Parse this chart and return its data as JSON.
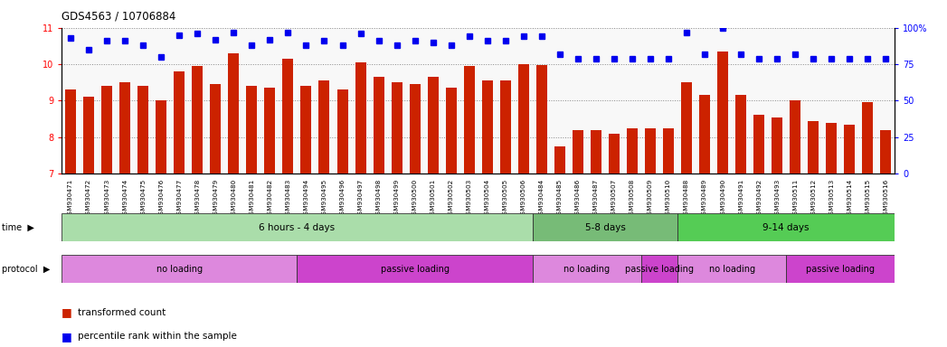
{
  "title": "GDS4563 / 10706884",
  "samples": [
    "GSM930471",
    "GSM930472",
    "GSM930473",
    "GSM930474",
    "GSM930475",
    "GSM930476",
    "GSM930477",
    "GSM930478",
    "GSM930479",
    "GSM930480",
    "GSM930481",
    "GSM930482",
    "GSM930483",
    "GSM930494",
    "GSM930495",
    "GSM930496",
    "GSM930497",
    "GSM930498",
    "GSM930499",
    "GSM930500",
    "GSM930501",
    "GSM930502",
    "GSM930503",
    "GSM930504",
    "GSM930505",
    "GSM930506",
    "GSM930484",
    "GSM930485",
    "GSM930486",
    "GSM930487",
    "GSM930507",
    "GSM930508",
    "GSM930509",
    "GSM930510",
    "GSM930488",
    "GSM930489",
    "GSM930490",
    "GSM930491",
    "GSM930492",
    "GSM930493",
    "GSM930511",
    "GSM930512",
    "GSM930513",
    "GSM930514",
    "GSM930515",
    "GSM930516"
  ],
  "bar_values": [
    9.3,
    9.1,
    9.4,
    9.5,
    9.4,
    9.0,
    9.8,
    9.95,
    9.45,
    10.3,
    9.4,
    9.35,
    10.15,
    9.4,
    9.55,
    9.3,
    10.05,
    9.65,
    9.5,
    9.45,
    9.65,
    9.35,
    9.95,
    9.55,
    9.55,
    10.0,
    9.97,
    7.75,
    8.2,
    8.2,
    8.1,
    8.25,
    8.25,
    8.25,
    9.5,
    9.15,
    10.35,
    9.15,
    8.6,
    8.55,
    9.0,
    8.45,
    8.4,
    8.35,
    8.95,
    8.2
  ],
  "dot_values": [
    93,
    85,
    91,
    91,
    88,
    80,
    95,
    96,
    92,
    97,
    88,
    92,
    97,
    88,
    91,
    88,
    96,
    91,
    88,
    91,
    90,
    88,
    94,
    91,
    91,
    94,
    94,
    82,
    79,
    79,
    79,
    79,
    79,
    79,
    97,
    82,
    100,
    82,
    79,
    79,
    82,
    79,
    79,
    79,
    79,
    79
  ],
  "ylim_left": [
    7,
    11
  ],
  "ylim_right": [
    0,
    100
  ],
  "yticks_left": [
    7,
    8,
    9,
    10,
    11
  ],
  "yticks_right": [
    0,
    25,
    50,
    75,
    100
  ],
  "bar_color": "#cc2200",
  "dot_color": "#0000ee",
  "bg_color": "#ffffff",
  "time_groups": [
    {
      "label": "6 hours - 4 days",
      "start": 0,
      "end": 26,
      "color": "#aaddaa"
    },
    {
      "label": "5-8 days",
      "start": 26,
      "end": 34,
      "color": "#77bb77"
    },
    {
      "label": "9-14 days",
      "start": 34,
      "end": 46,
      "color": "#55cc55"
    }
  ],
  "protocol_groups": [
    {
      "label": "no loading",
      "start": 0,
      "end": 13,
      "color": "#dd88dd"
    },
    {
      "label": "passive loading",
      "start": 13,
      "end": 26,
      "color": "#cc44cc"
    },
    {
      "label": "no loading",
      "start": 26,
      "end": 32,
      "color": "#dd88dd"
    },
    {
      "label": "passive loading",
      "start": 32,
      "end": 34,
      "color": "#cc44cc"
    },
    {
      "label": "no loading",
      "start": 34,
      "end": 40,
      "color": "#dd88dd"
    },
    {
      "label": "passive loading",
      "start": 40,
      "end": 46,
      "color": "#cc44cc"
    }
  ]
}
